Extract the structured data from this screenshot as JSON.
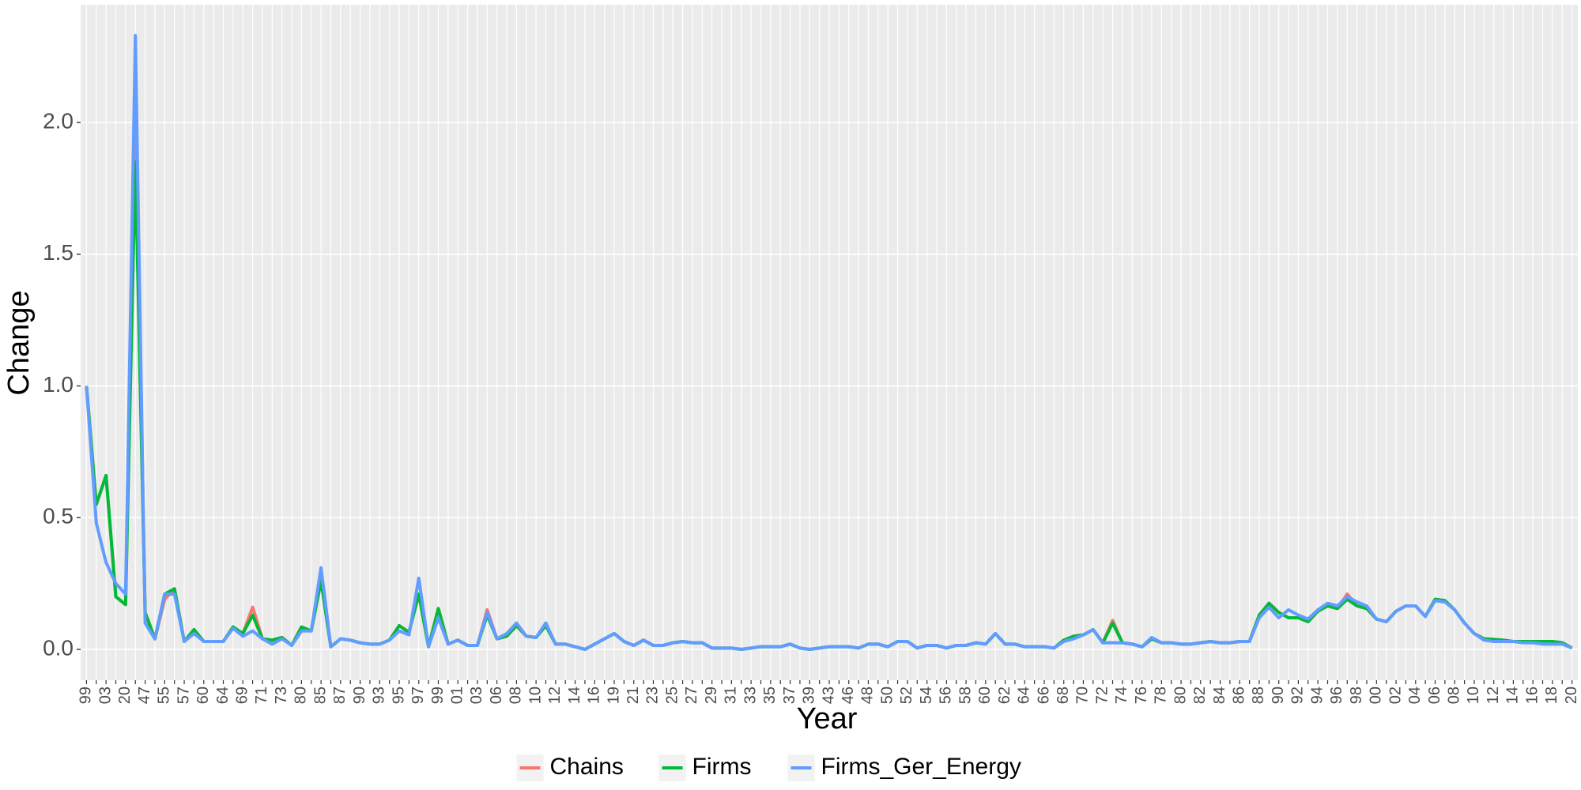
{
  "chart_data": {
    "type": "line",
    "x_label": "Year",
    "y_label": "Change",
    "categories": [
      "99",
      null,
      "03",
      null,
      "20",
      null,
      "47",
      null,
      "55",
      null,
      "57",
      null,
      "60",
      null,
      "64",
      null,
      "69",
      null,
      "71",
      null,
      "73",
      null,
      "80",
      null,
      "85",
      null,
      "87",
      null,
      "90",
      null,
      "93",
      null,
      "95",
      null,
      "97",
      null,
      "99",
      null,
      "01",
      null,
      "03",
      null,
      "06",
      null,
      "08",
      null,
      "10",
      null,
      "12",
      null,
      "14",
      null,
      "16",
      null,
      "19",
      null,
      "21",
      null,
      "23",
      null,
      "25",
      null,
      "27",
      null,
      "29",
      null,
      "31",
      null,
      "33",
      null,
      "35",
      null,
      "37",
      null,
      "39",
      null,
      "43",
      null,
      "46",
      null,
      "48",
      null,
      "50",
      null,
      "52",
      null,
      "54",
      null,
      "56",
      null,
      "58",
      null,
      "60",
      null,
      "62",
      null,
      "64",
      null,
      "66",
      null,
      "68",
      null,
      "70",
      null,
      "72",
      null,
      "74",
      null,
      "76",
      null,
      "78",
      null,
      "80",
      null,
      "82",
      null,
      "84",
      null,
      "86",
      null,
      "88",
      null,
      "90",
      null,
      "92",
      null,
      "94",
      null,
      "96",
      null,
      "98",
      null,
      "00",
      null,
      "02",
      null,
      "04",
      null,
      "06",
      null,
      "08",
      null,
      "10",
      null,
      "12",
      null,
      "14",
      null,
      "16",
      null,
      "18",
      null,
      "20"
    ],
    "series": [
      {
        "name": "Chains",
        "color": "#F8766D",
        "values": [
          1.0,
          0.55,
          0.66,
          0.2,
          0.17,
          2.15,
          0.14,
          0.04,
          0.19,
          0.23,
          0.03,
          0.075,
          0.03,
          0.03,
          0.03,
          0.085,
          0.06,
          0.16,
          0.04,
          0.035,
          0.045,
          0.015,
          0.085,
          0.07,
          0.26,
          0.01,
          0.04,
          0.035,
          0.025,
          0.02,
          0.02,
          0.035,
          0.09,
          0.065,
          0.21,
          0.01,
          0.155,
          0.02,
          0.035,
          0.015,
          0.015,
          0.15,
          0.04,
          0.05,
          0.09,
          0.05,
          0.045,
          0.09,
          0.02,
          0.02,
          0.01,
          0,
          0.02,
          0.04,
          0.06,
          0.03,
          0.015,
          0.035,
          0.015,
          0.015,
          0.025,
          0.03,
          0.025,
          0.025,
          0.005,
          0.005,
          0.005,
          0,
          0.005,
          0.01,
          0.01,
          0.01,
          0.02,
          0.005,
          0,
          0.005,
          0.01,
          0.01,
          0.01,
          0.005,
          0.02,
          0.02,
          0.01,
          0.03,
          0.03,
          0.005,
          0.015,
          0.015,
          0.005,
          0.015,
          0.015,
          0.025,
          0.02,
          0.06,
          0.02,
          0.02,
          0.01,
          0.01,
          0.01,
          0.005,
          0.035,
          0.05,
          0.055,
          0.075,
          0.025,
          0.11,
          0.025,
          0.02,
          0.01,
          0.04,
          0.025,
          0.025,
          0.02,
          0.02,
          0.025,
          0.03,
          0.025,
          0.025,
          0.03,
          0.03,
          0.13,
          0.175,
          0.14,
          0.12,
          0.12,
          0.105,
          0.145,
          0.165,
          0.155,
          0.21,
          0.165,
          0.155,
          0.115,
          0.105,
          0.145,
          0.165,
          0.165,
          0.125,
          0.19,
          0.185,
          0.15,
          0.1,
          0.06,
          0.04,
          0.038,
          0.035,
          0.03,
          0.03,
          0.03,
          0.03,
          0.03,
          0.025,
          0.005
        ]
      },
      {
        "name": "Firms",
        "color": "#00BA38",
        "values": [
          1.0,
          0.55,
          0.66,
          0.2,
          0.17,
          1.85,
          0.14,
          0.04,
          0.21,
          0.23,
          0.03,
          0.075,
          0.03,
          0.03,
          0.03,
          0.085,
          0.06,
          0.13,
          0.04,
          0.035,
          0.045,
          0.015,
          0.085,
          0.07,
          0.26,
          0.01,
          0.04,
          0.035,
          0.025,
          0.02,
          0.02,
          0.035,
          0.09,
          0.065,
          0.21,
          0.01,
          0.155,
          0.02,
          0.035,
          0.015,
          0.015,
          0.13,
          0.04,
          0.05,
          0.09,
          0.05,
          0.045,
          0.09,
          0.02,
          0.02,
          0.01,
          0,
          0.02,
          0.04,
          0.06,
          0.03,
          0.015,
          0.035,
          0.015,
          0.015,
          0.025,
          0.03,
          0.025,
          0.025,
          0.005,
          0.005,
          0.005,
          0,
          0.005,
          0.01,
          0.01,
          0.01,
          0.02,
          0.005,
          0,
          0.005,
          0.01,
          0.01,
          0.01,
          0.005,
          0.02,
          0.02,
          0.01,
          0.03,
          0.03,
          0.005,
          0.015,
          0.015,
          0.005,
          0.015,
          0.015,
          0.025,
          0.02,
          0.06,
          0.02,
          0.02,
          0.01,
          0.01,
          0.01,
          0.005,
          0.035,
          0.05,
          0.055,
          0.075,
          0.025,
          0.1,
          0.025,
          0.02,
          0.01,
          0.04,
          0.025,
          0.025,
          0.02,
          0.02,
          0.025,
          0.03,
          0.025,
          0.025,
          0.03,
          0.03,
          0.13,
          0.175,
          0.14,
          0.12,
          0.12,
          0.105,
          0.145,
          0.165,
          0.155,
          0.19,
          0.165,
          0.155,
          0.115,
          0.105,
          0.145,
          0.165,
          0.165,
          0.125,
          0.19,
          0.185,
          0.15,
          0.1,
          0.06,
          0.04,
          0.038,
          0.035,
          0.03,
          0.03,
          0.03,
          0.03,
          0.03,
          0.025,
          0.005
        ]
      },
      {
        "name": "Firms_Ger_Energy",
        "color": "#619CFF",
        "values": [
          1.0,
          0.48,
          0.33,
          0.25,
          0.21,
          2.33,
          0.1,
          0.04,
          0.21,
          0.21,
          0.03,
          0.06,
          0.03,
          0.03,
          0.03,
          0.08,
          0.05,
          0.07,
          0.04,
          0.02,
          0.04,
          0.015,
          0.07,
          0.07,
          0.31,
          0.01,
          0.04,
          0.035,
          0.025,
          0.02,
          0.02,
          0.035,
          0.07,
          0.055,
          0.27,
          0.01,
          0.12,
          0.02,
          0.035,
          0.015,
          0.015,
          0.14,
          0.04,
          0.06,
          0.1,
          0.05,
          0.045,
          0.1,
          0.02,
          0.02,
          0.01,
          0,
          0.02,
          0.04,
          0.06,
          0.03,
          0.015,
          0.035,
          0.015,
          0.015,
          0.025,
          0.03,
          0.025,
          0.025,
          0.005,
          0.005,
          0.005,
          0,
          0.005,
          0.01,
          0.01,
          0.01,
          0.02,
          0.005,
          0,
          0.005,
          0.01,
          0.01,
          0.01,
          0.005,
          0.02,
          0.02,
          0.01,
          0.03,
          0.03,
          0.005,
          0.015,
          0.015,
          0.005,
          0.015,
          0.015,
          0.025,
          0.02,
          0.06,
          0.02,
          0.02,
          0.01,
          0.01,
          0.01,
          0.005,
          0.03,
          0.04,
          0.055,
          0.075,
          0.025,
          0.025,
          0.025,
          0.02,
          0.01,
          0.045,
          0.025,
          0.025,
          0.02,
          0.02,
          0.025,
          0.03,
          0.025,
          0.025,
          0.03,
          0.03,
          0.12,
          0.16,
          0.12,
          0.15,
          0.13,
          0.115,
          0.15,
          0.175,
          0.165,
          0.2,
          0.18,
          0.165,
          0.115,
          0.105,
          0.145,
          0.165,
          0.165,
          0.125,
          0.185,
          0.18,
          0.15,
          0.1,
          0.06,
          0.035,
          0.03,
          0.03,
          0.03,
          0.025,
          0.025,
          0.02,
          0.02,
          0.02,
          0.005
        ]
      }
    ],
    "ylim": [
      -0.117,
      2.447
    ],
    "yticks": [
      {
        "value": 0,
        "label": "0.0"
      },
      0.5,
      {
        "value": 1,
        "label": "1.0"
      },
      1.5,
      {
        "value": 2,
        "label": "2.0"
      }
    ],
    "grid": true,
    "legend": "bottom"
  }
}
